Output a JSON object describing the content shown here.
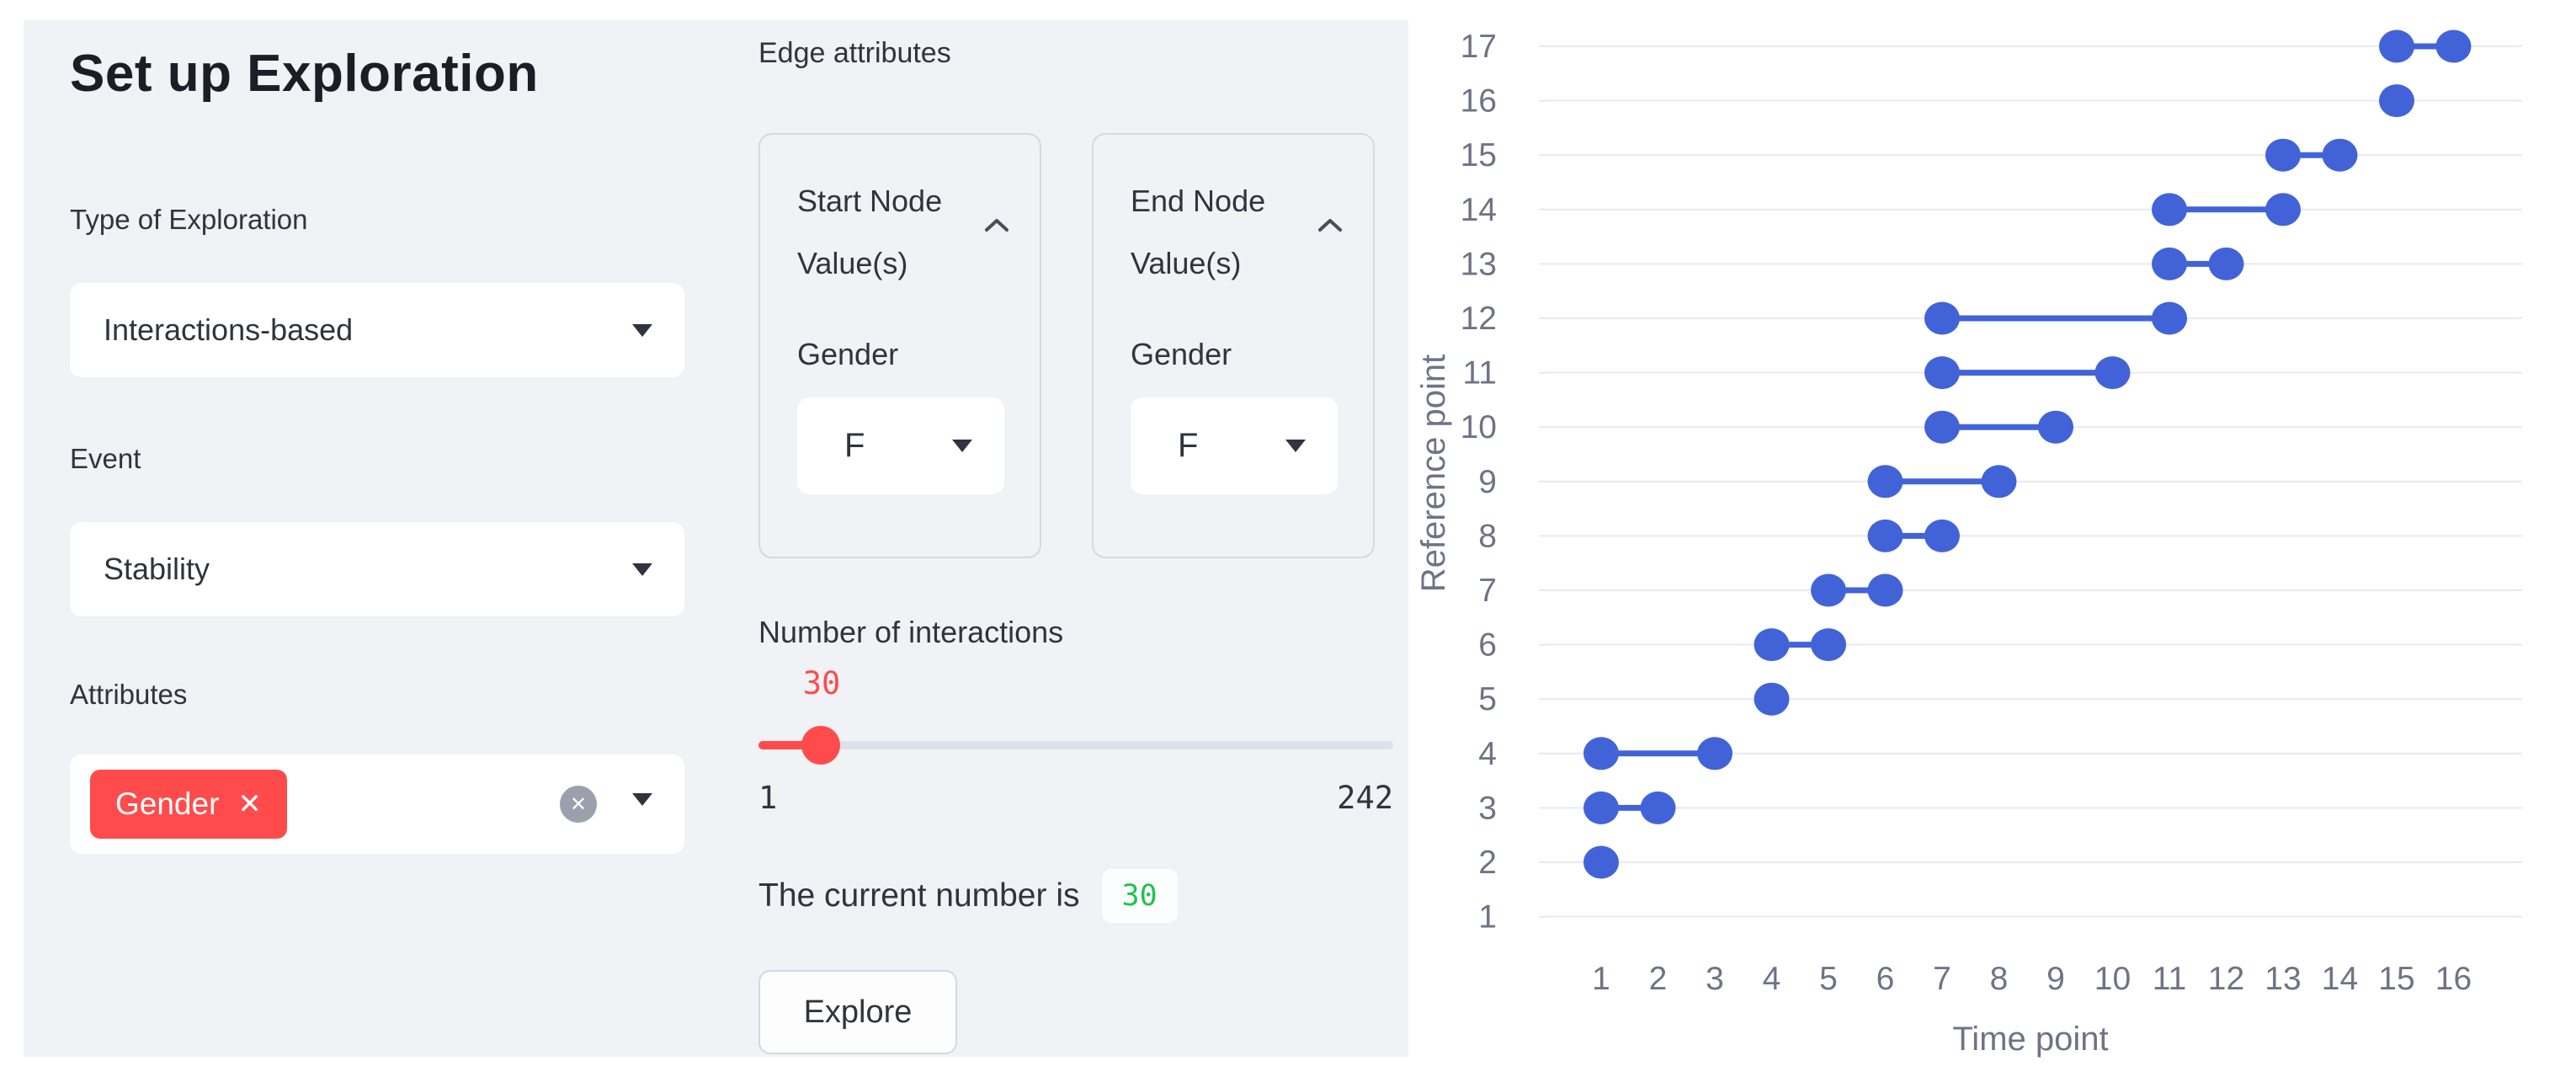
{
  "panel": {
    "title": "Set up Exploration",
    "type_of_exploration": {
      "label": "Type of Exploration",
      "value": "Interactions-based"
    },
    "event": {
      "label": "Event",
      "value": "Stability"
    },
    "attributes": {
      "label": "Attributes",
      "selected_tag": "Gender",
      "tag_remove": "✕",
      "clear_all": "✕"
    },
    "edge_attributes": {
      "label": "Edge attributes",
      "cards": [
        {
          "title_line1": "Start Node",
          "title_line2": "Value(s)",
          "field_label": "Gender",
          "value": "F"
        },
        {
          "title_line1": "End Node",
          "title_line2": "Value(s)",
          "field_label": "Gender",
          "value": "F"
        }
      ]
    },
    "interactions": {
      "label": "Number of interactions",
      "value": "30",
      "min": "1",
      "max": "242"
    },
    "current_number": {
      "text": "The current number is",
      "value": "30"
    },
    "explore_button": "Explore"
  },
  "colors": {
    "panel_bg": "#f0f2f6",
    "accent_red": "#ff4b4b",
    "code_green": "#21c24b",
    "marker_blue": "#4263d8",
    "text_dark": "#31333f",
    "axis_gray": "#6e7486",
    "grid_gray": "#e7eaf2"
  },
  "chart_data": {
    "type": "scatter",
    "subtype": "dumbbell",
    "xlabel": "Time point",
    "ylabel": "Reference point",
    "x_ticks": [
      1,
      2,
      3,
      4,
      5,
      6,
      7,
      8,
      9,
      10,
      11,
      12,
      13,
      14,
      15,
      16
    ],
    "y_ticks": [
      1,
      2,
      3,
      4,
      5,
      6,
      7,
      8,
      9,
      10,
      11,
      12,
      13,
      14,
      15,
      16,
      17
    ],
    "xlim": [
      0,
      17
    ],
    "ylim": [
      1,
      17
    ],
    "grid": "horizontal",
    "legend": "none",
    "marker_color": "#4263d8",
    "segments": [
      {
        "reference_point": 2,
        "start": 1,
        "end": 1
      },
      {
        "reference_point": 3,
        "start": 1,
        "end": 2
      },
      {
        "reference_point": 4,
        "start": 1,
        "end": 3
      },
      {
        "reference_point": 5,
        "start": 4,
        "end": 4
      },
      {
        "reference_point": 6,
        "start": 4,
        "end": 5
      },
      {
        "reference_point": 7,
        "start": 5,
        "end": 6
      },
      {
        "reference_point": 8,
        "start": 6,
        "end": 7
      },
      {
        "reference_point": 9,
        "start": 6,
        "end": 8
      },
      {
        "reference_point": 10,
        "start": 7,
        "end": 9
      },
      {
        "reference_point": 11,
        "start": 7,
        "end": 10
      },
      {
        "reference_point": 12,
        "start": 7,
        "end": 11
      },
      {
        "reference_point": 13,
        "start": 11,
        "end": 12
      },
      {
        "reference_point": 14,
        "start": 11,
        "end": 13
      },
      {
        "reference_point": 15,
        "start": 13,
        "end": 14
      },
      {
        "reference_point": 16,
        "start": 15,
        "end": 15
      },
      {
        "reference_point": 17,
        "start": 15,
        "end": 16
      }
    ]
  }
}
